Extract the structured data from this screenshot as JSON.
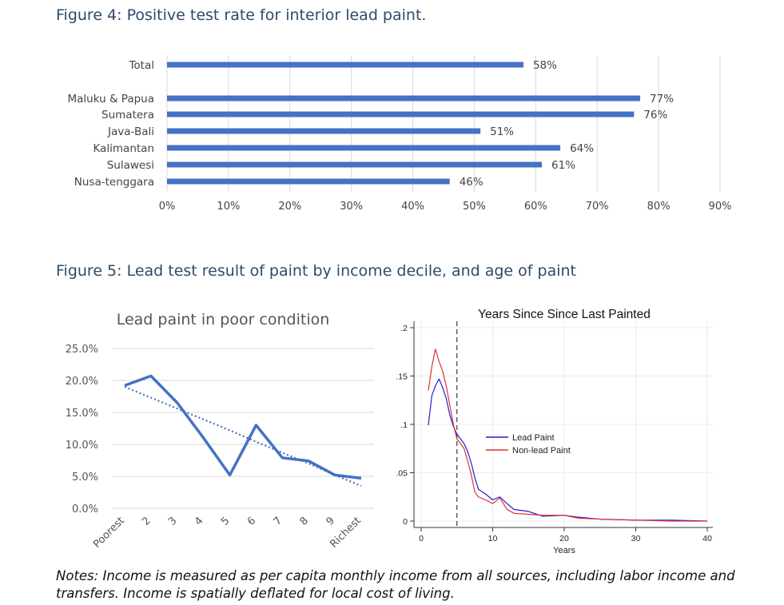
{
  "figures": {
    "fig4_caption": "Figure 4: Positive test rate for interior lead paint.",
    "fig5_caption": "Figure 5: Lead test result of paint by income decile, and age of paint"
  },
  "notes": "Notes: Income is measured as per capita monthly income from all sources, including labor income and transfers. Income is spatially deflated for local cost of living.",
  "chart_data": [
    {
      "type": "bar",
      "orientation": "horizontal",
      "title": "",
      "categories": [
        "Total",
        "Maluku & Papua",
        "Sumatera",
        "Java-Bali",
        "Kalimantan",
        "Sulawesi",
        "Nusa-tenggara"
      ],
      "values": [
        58,
        77,
        76,
        51,
        64,
        61,
        46
      ],
      "value_labels": [
        "58%",
        "77%",
        "76%",
        "51%",
        "64%",
        "61%",
        "46%"
      ],
      "xlim": [
        0,
        90
      ],
      "xticks": [
        "0%",
        "10%",
        "20%",
        "30%",
        "40%",
        "50%",
        "60%",
        "70%",
        "80%",
        "90%"
      ],
      "grid": true,
      "color": "#4472c4"
    },
    {
      "type": "line",
      "title": "Lead paint in poor condition",
      "categories": [
        "Poorest",
        "2",
        "3",
        "4",
        "5",
        "6",
        "7",
        "8",
        "9",
        "Richest"
      ],
      "series": [
        {
          "values": [
            19.2,
            20.7,
            16.5,
            11.0,
            5.2,
            13.0,
            7.9,
            7.4,
            5.2,
            4.7
          ],
          "style": "solid"
        },
        {
          "values": [
            19.0,
            17.3,
            15.6,
            13.9,
            12.2,
            10.4,
            8.7,
            7.0,
            5.2,
            3.5
          ],
          "style": "dotted"
        }
      ],
      "ylim": [
        0,
        25
      ],
      "yticks": [
        "0.0%",
        "5.0%",
        "10.0%",
        "15.0%",
        "20.0%",
        "25.0%"
      ],
      "grid": true,
      "color": "#4472c4"
    },
    {
      "type": "line",
      "title": "Years Since Since Last Painted",
      "xlabel": "Years",
      "ylabel": "",
      "xlim": [
        0,
        40
      ],
      "ylim": [
        0,
        0.2
      ],
      "xticks": [
        "0",
        "10",
        "20",
        "30",
        "40"
      ],
      "yticks": [
        "0",
        ".05",
        ".1",
        ".15",
        ".2"
      ],
      "reference_line_x": 5,
      "legend_placement": "center-right",
      "series": [
        {
          "name": "Lead Paint",
          "color": "#1f1fd0",
          "x": [
            1,
            1.5,
            2,
            2.5,
            3,
            3.5,
            4,
            4.5,
            5,
            5.5,
            6,
            6.5,
            7,
            7.5,
            8,
            9,
            10,
            11,
            12,
            13,
            15,
            17,
            20,
            22,
            25,
            30,
            35,
            40
          ],
          "y": [
            0.099,
            0.13,
            0.14,
            0.147,
            0.138,
            0.127,
            0.11,
            0.098,
            0.09,
            0.085,
            0.08,
            0.072,
            0.06,
            0.045,
            0.033,
            0.028,
            0.022,
            0.025,
            0.018,
            0.012,
            0.01,
            0.005,
            0.006,
            0.004,
            0.002,
            0.001,
            0.001,
            0.0
          ]
        },
        {
          "name": "Non-lead Paint",
          "color": "#e03030",
          "x": [
            1,
            1.5,
            2,
            2.5,
            3,
            3.5,
            4,
            4.5,
            5,
            5.5,
            6,
            6.5,
            7,
            7.5,
            8,
            9,
            10,
            11,
            12,
            13,
            15,
            17,
            20,
            22,
            25,
            30,
            35,
            40
          ],
          "y": [
            0.135,
            0.16,
            0.178,
            0.165,
            0.155,
            0.14,
            0.12,
            0.1,
            0.085,
            0.08,
            0.075,
            0.062,
            0.048,
            0.03,
            0.025,
            0.022,
            0.018,
            0.024,
            0.012,
            0.008,
            0.007,
            0.006,
            0.006,
            0.003,
            0.002,
            0.001,
            0.0,
            0.0
          ]
        }
      ]
    }
  ]
}
